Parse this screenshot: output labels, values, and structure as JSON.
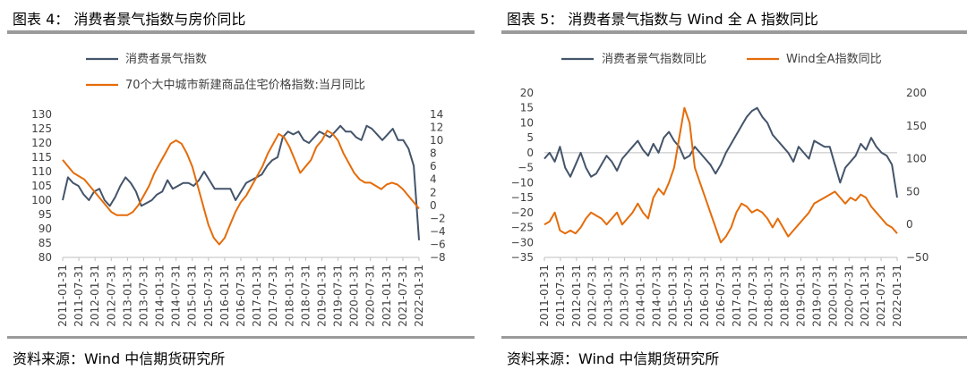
{
  "colors": {
    "series1": "#44546a",
    "series2": "#e46c0a",
    "rule": "#9a9a9a",
    "axis": "#bfbfbf"
  },
  "dates": [
    "2011-01-31",
    "2011-07-31",
    "2012-01-31",
    "2012-07-31",
    "2013-01-31",
    "2013-07-31",
    "2014-01-31",
    "2014-07-31",
    "2015-01-31",
    "2015-07-31",
    "2016-01-31",
    "2016-07-31",
    "2017-01-31",
    "2017-07-31",
    "2018-01-31",
    "2018-07-31",
    "2019-01-31",
    "2019-07-31",
    "2020-01-31",
    "2020-07-31",
    "2021-01-31",
    "2021-07-31",
    "2022-01-31"
  ],
  "figures": [
    {
      "title": "图表 4：  消费者景气指数与房价同比",
      "source": "资料来源：Wind  中信期货研究所",
      "chart_data": {
        "type": "line",
        "title": "消费者景气指数与房价同比",
        "x_ticks": [
          "2011-01-31",
          "2011-07-31",
          "2012-01-31",
          "2012-07-31",
          "2013-01-31",
          "2013-07-31",
          "2014-01-31",
          "2014-07-31",
          "2015-01-31",
          "2015-07-31",
          "2016-01-31",
          "2016-07-31",
          "2017-01-31",
          "2017-07-31",
          "2018-01-31",
          "2018-07-31",
          "2019-01-31",
          "2019-07-31",
          "2020-01-31",
          "2020-07-31",
          "2021-01-31",
          "2021-07-31",
          "2022-01-31"
        ],
        "left_axis": {
          "range": [
            80,
            130
          ],
          "ticks": [
            "130",
            "125",
            "120",
            "115",
            "110",
            "105",
            "100",
            "95",
            "90",
            "85",
            "80"
          ]
        },
        "right_axis": {
          "range": [
            -8,
            14
          ],
          "ticks": [
            "14",
            "12",
            "10",
            "8",
            "6",
            "4",
            "2",
            "0",
            "−2",
            "−4",
            "−6",
            "−8"
          ]
        },
        "series": [
          {
            "name": "消费者景气指数",
            "axis": "left",
            "values": [
              100,
              108,
              106,
              105,
              102,
              100,
              103,
              104,
              100,
              98,
              101,
              105,
              108,
              106,
              103,
              98,
              99,
              100,
              102,
              103,
              107,
              104,
              105,
              106,
              106,
              105,
              107,
              110,
              107,
              104,
              104,
              104,
              104,
              100,
              103,
              106,
              107,
              108,
              109,
              112,
              114,
              115,
              122,
              124,
              123,
              124,
              121,
              120,
              122,
              124,
              123,
              122,
              124,
              126,
              124,
              124,
              122,
              121,
              126,
              125,
              123,
              121,
              123,
              125,
              121,
              121,
              118,
              112,
              86
            ]
          },
          {
            "name": "70个大中城市新建商品住宅价格指数:当月同比",
            "axis": "right",
            "values": [
              7,
              6,
              5,
              4.5,
              4,
              3,
              2,
              1,
              0,
              -1,
              -1.5,
              -1.5,
              -1.5,
              -1,
              0,
              1.5,
              3,
              5,
              6.5,
              8,
              9.5,
              10,
              9.5,
              8,
              6,
              3,
              0,
              -3,
              -5,
              -6,
              -5,
              -3,
              -1,
              0.5,
              1.5,
              3,
              4.5,
              6,
              8,
              9.5,
              11,
              10.5,
              9,
              7,
              5,
              6,
              7,
              9,
              10,
              11.5,
              11,
              10,
              8,
              6.5,
              5,
              4,
              3.5,
              3.5,
              3,
              2.5,
              3.2,
              3.5,
              3.2,
              2.5,
              1.5,
              0.5,
              -0.5
            ]
          }
        ],
        "legend": "top"
      }
    },
    {
      "title": "图表 5：  消费者景气指数与 Wind 全 A 指数同比",
      "source": "资料来源：Wind  中信期货研究所",
      "chart_data": {
        "type": "line",
        "title": "消费者景气指数与 Wind 全 A 指数同比",
        "x_ticks": [
          "2011-01-31",
          "2011-07-31",
          "2012-01-31",
          "2012-07-31",
          "2013-01-31",
          "2013-07-31",
          "2014-01-31",
          "2014-07-31",
          "2015-01-31",
          "2015-07-31",
          "2016-01-31",
          "2016-07-31",
          "2017-01-31",
          "2017-07-31",
          "2018-01-31",
          "2018-07-31",
          "2019-01-31",
          "2019-07-31",
          "2020-01-31",
          "2020-07-31",
          "2021-01-31",
          "2021-07-31",
          "2022-01-31"
        ],
        "left_axis": {
          "range": [
            -35,
            20
          ],
          "ticks": [
            "20",
            "15",
            "10",
            "5",
            "0",
            "−5",
            "−10",
            "−15",
            "−20",
            "−25",
            "−30",
            "−35"
          ]
        },
        "right_axis": {
          "range": [
            -50,
            200
          ],
          "ticks": [
            "200",
            "150",
            "100",
            "50",
            "0",
            "−50"
          ]
        },
        "series": [
          {
            "name": "消费者景气指数同比",
            "axis": "left",
            "values": [
              -2,
              0,
              -3,
              2,
              -5,
              -8,
              -4,
              0,
              -5,
              -8,
              -7,
              -4,
              -1,
              -3,
              -6,
              -2,
              0,
              2,
              4,
              1,
              -1,
              3,
              0,
              5,
              7,
              4,
              2,
              -2,
              -1,
              2,
              0,
              -2,
              -4,
              -7,
              -4,
              0,
              3,
              6,
              9,
              12,
              14,
              15,
              12,
              10,
              6,
              4,
              2,
              0,
              -3,
              2,
              0,
              -2,
              4,
              3,
              2,
              2,
              -4,
              -10,
              -5,
              -3,
              -1,
              3,
              1,
              5,
              2,
              0,
              -1,
              -4,
              -15
            ]
          },
          {
            "name": "Wind全A指数同比",
            "axis": "left",
            "values": [
              -24,
              -23,
              -20,
              -26,
              -27,
              -26,
              -27,
              -25,
              -22,
              -20,
              -21,
              -22,
              -24,
              -22,
              -20,
              -24,
              -22,
              -20,
              -17,
              -20,
              -22,
              -15,
              -12,
              -14,
              -10,
              -5,
              5,
              15,
              10,
              -5,
              -10,
              -15,
              -20,
              -25,
              -30,
              -28,
              -25,
              -20,
              -17,
              -18,
              -20,
              -19,
              -20,
              -22,
              -25,
              -22,
              -25,
              -28,
              -26,
              -24,
              -22,
              -20,
              -17,
              -16,
              -15,
              -14,
              -13,
              -15,
              -17,
              -15,
              -16,
              -14,
              -15,
              -18,
              -20,
              -22,
              -24,
              -25,
              -27
            ]
          }
        ],
        "legend": "top"
      }
    }
  ]
}
